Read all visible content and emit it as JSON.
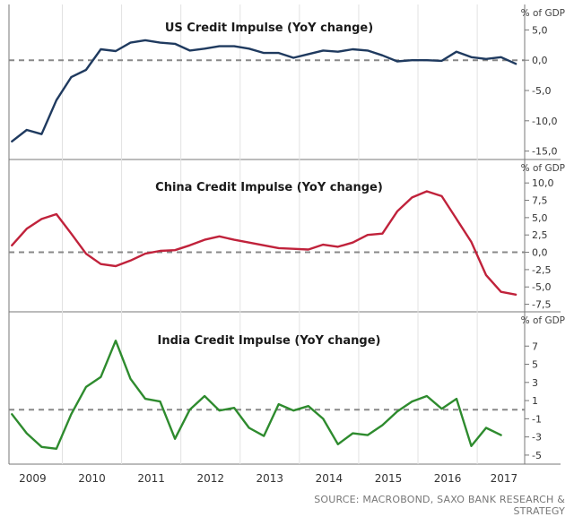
{
  "source": "SOURCE: MACROBOND, SAXO BANK RESEARCH & STRATEGY",
  "chart_data": [
    {
      "type": "line",
      "title": "US Credit Impulse (YoY change)",
      "unit": "% of GDP",
      "ylim": [
        -15.5,
        5.5
      ],
      "yticks": [
        5,
        0,
        -5,
        -10,
        -15
      ],
      "ytick_labels": [
        "5,0",
        "0,0",
        "-5,0",
        "-10,0",
        "-15,0"
      ],
      "color": "#1f3a5f",
      "x_start": 2008.65,
      "x_step": 0.25,
      "values": [
        -13.4,
        -11.5,
        -12.2,
        -6.6,
        -2.8,
        -1.6,
        1.8,
        1.5,
        2.9,
        3.3,
        2.9,
        2.7,
        1.6,
        1.9,
        2.3,
        2.3,
        1.9,
        1.2,
        1.2,
        0.4,
        1.0,
        1.6,
        1.4,
        1.8,
        1.6,
        0.8,
        -0.2,
        0.0,
        0.0,
        -0.1,
        1.4,
        0.5,
        0.2,
        0.5,
        -0.6
      ]
    },
    {
      "type": "line",
      "title": "China Credit Impulse (YoY change)",
      "unit": "% of GDP",
      "ylim": [
        -8.2,
        10.8
      ],
      "yticks": [
        10,
        7.5,
        5,
        2.5,
        0,
        -2.5,
        -5,
        -7.5
      ],
      "ytick_labels": [
        "10,0",
        "7,5",
        "5,0",
        "2,5",
        "0,0",
        "-2,5",
        "-5,0",
        "-7,5"
      ],
      "color": "#c0223b",
      "x_start": 2008.65,
      "x_step": 0.25,
      "values": [
        1.0,
        3.4,
        4.8,
        5.5,
        2.7,
        -0.2,
        -1.7,
        -2.0,
        -1.2,
        -0.2,
        0.2,
        0.3,
        1.0,
        1.8,
        2.3,
        1.8,
        1.4,
        1.0,
        0.6,
        0.5,
        0.4,
        1.1,
        0.8,
        1.4,
        2.5,
        2.7,
        5.9,
        7.9,
        8.8,
        8.1,
        4.8,
        1.5,
        -3.3,
        -5.7,
        -6.1
      ]
    },
    {
      "type": "line",
      "title": "India Credit Impulse (YoY change)",
      "unit": "% of GDP",
      "ylim": [
        -5.6,
        8.8
      ],
      "yticks": [
        7,
        5,
        3,
        1,
        -1,
        -3,
        -5
      ],
      "ytick_labels": [
        "7",
        "5",
        "3",
        "1",
        "-1",
        "-3",
        "-5"
      ],
      "color": "#2e8b2e",
      "x_start": 2008.65,
      "x_step": 0.25,
      "values": [
        -0.5,
        -2.6,
        -4.1,
        -4.3,
        -0.5,
        2.5,
        3.6,
        7.6,
        3.4,
        1.2,
        0.9,
        -3.2,
        0.0,
        1.5,
        -0.1,
        0.2,
        -2.0,
        -2.9,
        0.6,
        -0.1,
        0.4,
        -1.0,
        -3.8,
        -2.6,
        -2.8,
        -1.7,
        -0.2,
        0.9,
        1.5,
        0.1,
        1.2,
        -4.0,
        -2.0,
        -2.8
      ]
    }
  ],
  "x_axis": {
    "xlim": [
      2008.6,
      2017.3
    ],
    "tick_labels": [
      {
        "label": "2009",
        "pos": 2009.0
      },
      {
        "label": "2010",
        "pos": 2010.0
      },
      {
        "label": "2011",
        "pos": 2011.0
      },
      {
        "label": "2012",
        "pos": 2012.0
      },
      {
        "label": "2013",
        "pos": 2013.0
      },
      {
        "label": "2014",
        "pos": 2014.0
      },
      {
        "label": "2015",
        "pos": 2015.0
      },
      {
        "label": "2016",
        "pos": 2016.0
      },
      {
        "label": "2017",
        "pos": 2016.95
      }
    ],
    "gridline_years": [
      2009.5,
      2010.5,
      2011.5,
      2012.5,
      2013.5,
      2014.5,
      2015.5,
      2016.5
    ]
  }
}
